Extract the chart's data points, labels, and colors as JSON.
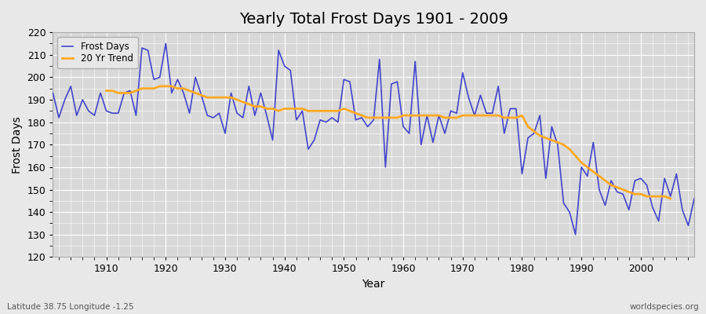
{
  "title": "Yearly Total Frost Days 1901 - 2009",
  "xlabel": "Year",
  "ylabel": "Frost Days",
  "bottom_left_label": "Latitude 38.75 Longitude -1.25",
  "bottom_right_label": "worldspecies.org",
  "bg_color": "#e8e8e8",
  "plot_bg_color": "#d8d8d8",
  "frost_line_color": "#4444cc",
  "trend_line_color": "#ffaa22",
  "ylim": [
    120,
    220
  ],
  "xlim": [
    1901,
    2009
  ],
  "yticks": [
    120,
    130,
    140,
    150,
    160,
    170,
    180,
    190,
    200,
    210,
    220
  ],
  "xticks": [
    1910,
    1920,
    1930,
    1940,
    1950,
    1960,
    1970,
    1980,
    1990,
    2000
  ],
  "years": [
    1901,
    1902,
    1903,
    1904,
    1905,
    1906,
    1907,
    1908,
    1909,
    1910,
    1911,
    1912,
    1913,
    1914,
    1915,
    1916,
    1917,
    1918,
    1919,
    1920,
    1921,
    1922,
    1923,
    1924,
    1925,
    1926,
    1927,
    1928,
    1929,
    1930,
    1931,
    1932,
    1933,
    1934,
    1935,
    1936,
    1937,
    1938,
    1939,
    1940,
    1941,
    1942,
    1943,
    1944,
    1945,
    1946,
    1947,
    1948,
    1949,
    1950,
    1951,
    1952,
    1953,
    1954,
    1955,
    1956,
    1957,
    1958,
    1959,
    1960,
    1961,
    1962,
    1963,
    1964,
    1965,
    1966,
    1967,
    1968,
    1969,
    1970,
    1971,
    1972,
    1973,
    1974,
    1975,
    1976,
    1977,
    1978,
    1979,
    1980,
    1981,
    1982,
    1983,
    1984,
    1985,
    1986,
    1987,
    1988,
    1989,
    1990,
    1991,
    1992,
    1993,
    1994,
    1995,
    1996,
    1997,
    1998,
    1999,
    2000,
    2001,
    2002,
    2003,
    2004,
    2005,
    2006,
    2007,
    2008,
    2009
  ],
  "frost_days": [
    193,
    182,
    190,
    196,
    183,
    190,
    185,
    183,
    193,
    185,
    184,
    184,
    193,
    194,
    183,
    213,
    212,
    199,
    200,
    215,
    193,
    199,
    193,
    184,
    200,
    192,
    183,
    182,
    184,
    175,
    193,
    184,
    182,
    196,
    183,
    193,
    183,
    172,
    212,
    205,
    203,
    181,
    185,
    168,
    172,
    181,
    180,
    182,
    180,
    199,
    198,
    181,
    182,
    178,
    181,
    208,
    160,
    197,
    198,
    178,
    175,
    207,
    170,
    183,
    171,
    183,
    175,
    185,
    184,
    202,
    191,
    183,
    192,
    184,
    184,
    196,
    175,
    186,
    186,
    157,
    173,
    175,
    183,
    155,
    178,
    170,
    144,
    140,
    130,
    160,
    156,
    171,
    150,
    143,
    154,
    149,
    148,
    141,
    154,
    155,
    152,
    142,
    136,
    155,
    147,
    157,
    141,
    134,
    146
  ],
  "trend_years": [
    1910,
    1911,
    1912,
    1913,
    1914,
    1915,
    1916,
    1917,
    1918,
    1919,
    1920,
    1921,
    1922,
    1923,
    1924,
    1925,
    1926,
    1927,
    1928,
    1929,
    1930,
    1931,
    1932,
    1933,
    1934,
    1935,
    1936,
    1937,
    1938,
    1939,
    1940,
    1941,
    1942,
    1943,
    1944,
    1945,
    1946,
    1947,
    1948,
    1949,
    1950,
    1951,
    1952,
    1953,
    1954,
    1955,
    1956,
    1957,
    1958,
    1959,
    1960,
    1961,
    1962,
    1963,
    1964,
    1965,
    1966,
    1967,
    1968,
    1969,
    1970,
    1971,
    1972,
    1973,
    1974,
    1975,
    1976,
    1977,
    1978,
    1979,
    1980,
    1981,
    1982,
    1983,
    1984,
    1985,
    1986,
    1987,
    1988,
    1989,
    1990,
    1991,
    1992,
    1993,
    1994,
    1995,
    1996,
    1997,
    1998,
    1999,
    2000,
    2001,
    2002,
    2003,
    2004,
    2005
  ],
  "trend_values": [
    194,
    194,
    193,
    193,
    193,
    194,
    195,
    195,
    195,
    196,
    196,
    196,
    195,
    195,
    194,
    193,
    192,
    191,
    191,
    191,
    191,
    191,
    190,
    189,
    188,
    187,
    187,
    186,
    186,
    185,
    186,
    186,
    186,
    186,
    185,
    185,
    185,
    185,
    185,
    185,
    186,
    185,
    184,
    183,
    182,
    182,
    182,
    182,
    182,
    182,
    183,
    183,
    183,
    183,
    183,
    183,
    183,
    182,
    182,
    182,
    183,
    183,
    183,
    183,
    183,
    183,
    183,
    182,
    182,
    182,
    183,
    178,
    176,
    174,
    173,
    172,
    171,
    170,
    168,
    165,
    162,
    160,
    158,
    156,
    154,
    152,
    151,
    150,
    149,
    148,
    148,
    147,
    147,
    147,
    147,
    146
  ]
}
